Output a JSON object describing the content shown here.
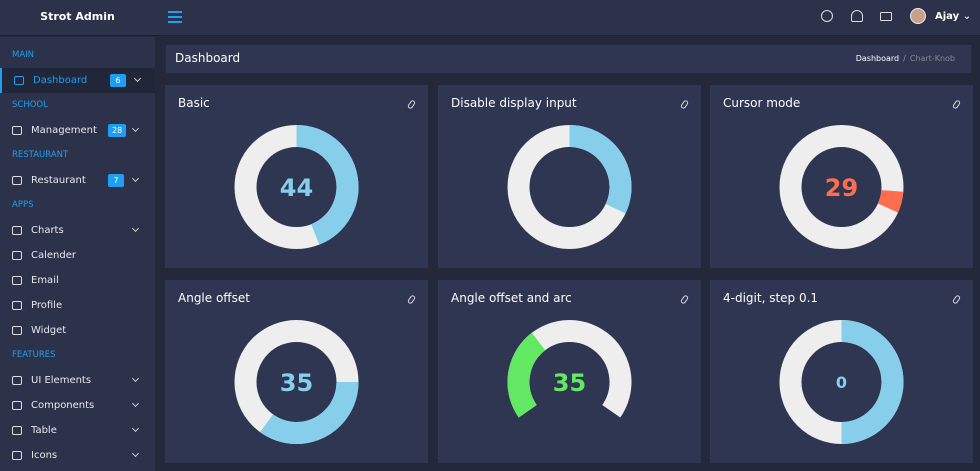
{
  "header": {
    "brand": "Strot Admin",
    "user": "Ajay"
  },
  "sidebar": {
    "sections": [
      {
        "title": "MAIN",
        "items": [
          {
            "label": "Dashboard",
            "badge": 6,
            "active": true,
            "chevron": true
          }
        ]
      },
      {
        "title": "SCHOOL",
        "items": [
          {
            "label": "Management",
            "badge": 28,
            "chevron": true
          }
        ]
      },
      {
        "title": "RESTAURANT",
        "items": [
          {
            "label": "Restaurant",
            "badge": 7,
            "chevron": true
          }
        ]
      },
      {
        "title": "APPS",
        "items": [
          {
            "label": "Charts",
            "chevron": true
          },
          {
            "label": "Calender"
          },
          {
            "label": "Email"
          },
          {
            "label": "Profile"
          },
          {
            "label": "Widget"
          }
        ]
      },
      {
        "title": "FEATURES",
        "items": [
          {
            "label": "UI Elements",
            "chevron": true
          },
          {
            "label": "Components",
            "chevron": true
          },
          {
            "label": "Table",
            "chevron": true
          },
          {
            "label": "Icons",
            "chevron": true
          }
        ]
      }
    ]
  },
  "page": {
    "title": "Dashboard",
    "breadcrumb": [
      "Dashboard",
      "Chart-Knob"
    ]
  },
  "knobs": [
    {
      "title": "Basic",
      "value": 44,
      "min": 0,
      "max": 100,
      "color": "#87ceeb",
      "display": true
    },
    {
      "title": "Disable display input",
      "value": 32,
      "min": 0,
      "max": 100,
      "color": "#87ceeb",
      "display": false
    },
    {
      "title": "Cursor mode",
      "value": 29,
      "min": 0,
      "max": 100,
      "color": "#ff6d4f",
      "display": true,
      "cursor": true
    },
    {
      "title": "Angle offset",
      "value": 35,
      "min": 0,
      "max": 100,
      "color": "#87ceeb",
      "display": true,
      "angleOffset": 90
    },
    {
      "title": "Angle offset and arc",
      "value": 35,
      "min": 0,
      "max": 100,
      "color": "#62e862",
      "display": true,
      "angleOffset": -125,
      "angleArc": 250
    },
    {
      "title": "4-digit, step 0.1",
      "value": 0,
      "min": -1,
      "max": 1,
      "color": "#87ceeb",
      "display": true,
      "small": true
    }
  ]
}
